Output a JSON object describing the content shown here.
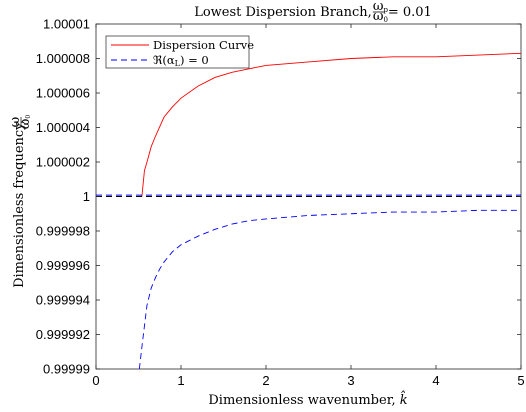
{
  "chart_data": {
    "type": "line",
    "title": "Lowest Dispersion Branch, ω_p / ω_0 = 0.01",
    "title_parts": {
      "prefix": "Lowest Dispersion Branch, ",
      "num": "ω",
      "num_sub": "p",
      "den": "ω",
      "den_sub": "0",
      "suffix": " = 0.01"
    },
    "xlabel": "Dimensionless wavenumber, k̂",
    "xlabel_parts": {
      "prefix": "Dimensionless wavenumber, ",
      "var": "k̂"
    },
    "ylabel": "Dimensionless frequency, ω / ω_0",
    "ylabel_parts": {
      "prefix": "Dimensionless frequency, ",
      "num": "ω",
      "den": "ω",
      "den_sub": "0"
    },
    "xlim": [
      0,
      5
    ],
    "ylim": [
      0.99999,
      1.00001
    ],
    "xticks": [
      "0",
      "1",
      "2",
      "3",
      "4",
      "5"
    ],
    "xtick_values": [
      0,
      1,
      2,
      3,
      4,
      5
    ],
    "yticks": [
      "0.99999",
      "0.999992",
      "0.999994",
      "0.999996",
      "0.999998",
      "1",
      "1.000002",
      "1.000004",
      "1.000006",
      "1.000008",
      "1.00001"
    ],
    "ytick_values": [
      0.99999,
      0.999992,
      0.999994,
      0.999996,
      0.999998,
      1.0,
      1.000002,
      1.000004,
      1.000006,
      1.000008,
      1.00001
    ],
    "grid": false,
    "legend_position": "top-left",
    "series": [
      {
        "name": "Dispersion Curve",
        "color": "#ff0000",
        "style": "solid",
        "x": [
          0.54,
          0.57,
          0.6,
          0.65,
          0.7,
          0.8,
          0.9,
          1.0,
          1.2,
          1.4,
          1.6,
          1.8,
          2.0,
          2.5,
          3.0,
          3.5,
          4.0,
          4.5,
          5.0
        ],
        "y": [
          1.0,
          1.0000015,
          1.000002,
          1.0000029,
          1.0000035,
          1.0000046,
          1.0000052,
          1.0000057,
          1.0000064,
          1.0000069,
          1.0000072,
          1.0000074,
          1.0000076,
          1.0000078,
          1.000008,
          1.0000081,
          1.0000081,
          1.0000082,
          1.0000083
        ]
      },
      {
        "name": "ℜ(α_L) = 0",
        "name_parts": {
          "prefix": "ℜ(α",
          "sub": "L",
          "suffix": ") = 0"
        },
        "color": "#0000ff",
        "style": "dashed",
        "x": [
          0.51,
          0.55,
          0.6,
          0.65,
          0.7,
          0.75,
          0.8,
          0.9,
          1.0,
          1.2,
          1.4,
          1.6,
          1.8,
          2.0,
          2.5,
          3.0,
          3.5,
          4.0,
          4.5,
          5.0
        ],
        "y": [
          0.99999,
          0.9999917,
          0.9999937,
          0.9999947,
          0.9999953,
          0.9999958,
          0.9999962,
          0.9999968,
          0.9999972,
          0.9999977,
          0.9999981,
          0.9999984,
          0.9999986,
          0.9999987,
          0.9999989,
          0.999999,
          0.9999991,
          0.9999991,
          0.9999992,
          0.9999992
        ]
      },
      {
        "color": "#0000ff",
        "style": "dashed",
        "x": [
          0,
          5
        ],
        "y": [
          1.00000008,
          1.00000008
        ]
      },
      {
        "color": "#000000",
        "style": "dashed",
        "x": [
          0,
          5
        ],
        "y": [
          1.0,
          1.0
        ]
      }
    ]
  }
}
